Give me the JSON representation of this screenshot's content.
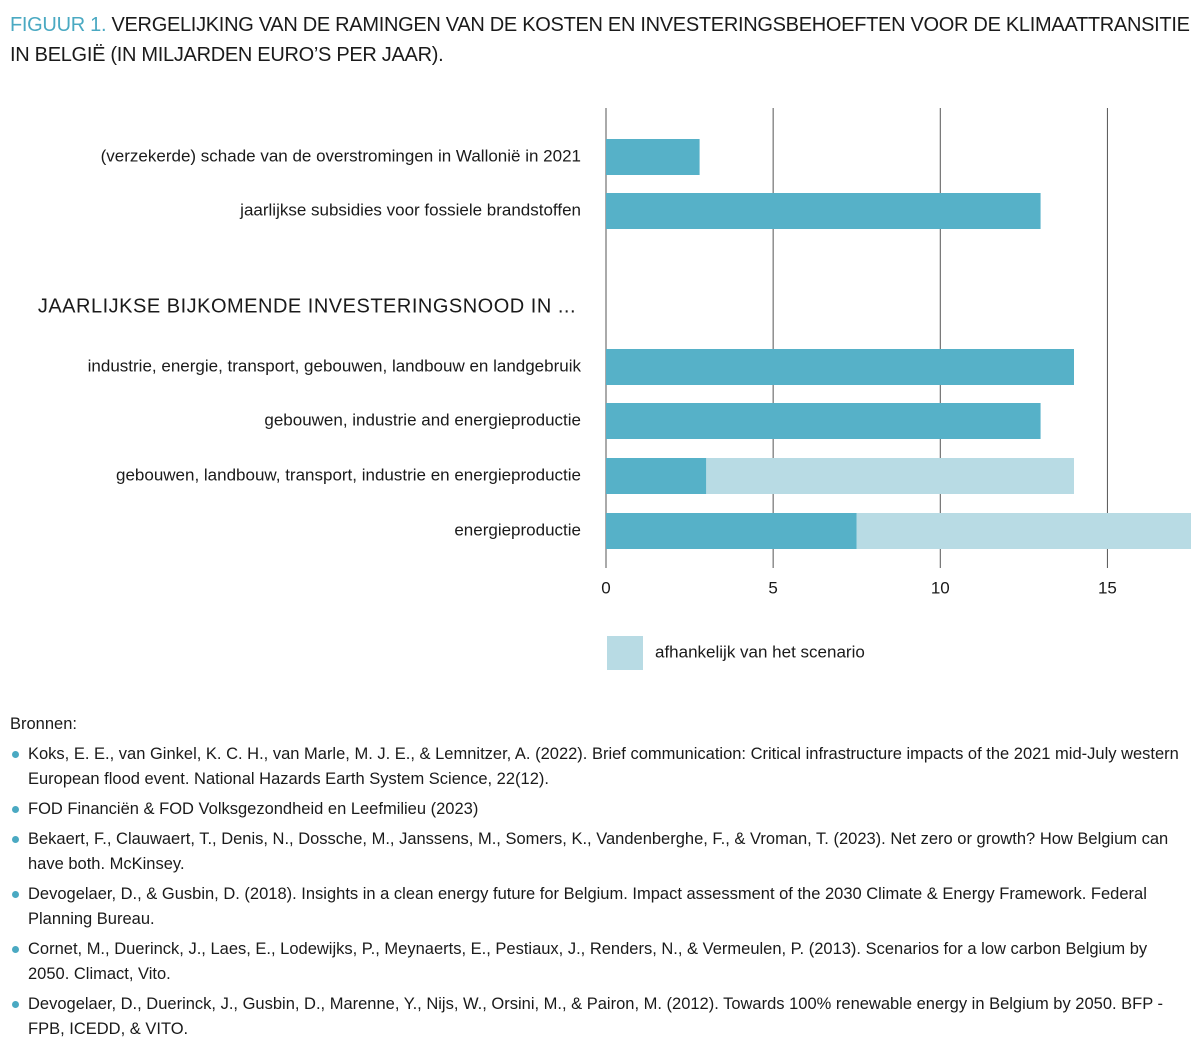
{
  "chart_data": {
    "type": "stacked-barh",
    "figure_label": "FIGUUR 1.",
    "title": "VERGELIJKING VAN DE RAMINGEN VAN DE KOSTEN EN INVESTERINGSBEHOEFTEN VOOR DE KLIMAATTRANSITIE IN BELGIË (IN MILJARDEN EURO’S PER JAAR).",
    "group_label": "JAARLIJKSE BIJKOMENDE INVESTERINGSNOOD IN ...",
    "categories": [
      "(verzekerde) schade van de overstromingen in Wallonië in 2021",
      "jaarlijkse subsidies voor fossiele brandstoffen",
      "industrie, energie, transport, gebouwen, landbouw en landgebruik",
      "gebouwen, industrie and energieproductie",
      "gebouwen, landbouw, transport, industrie en energieproductie",
      "energieproductie"
    ],
    "series": [
      {
        "color": "#56b1c8",
        "values": [
          2.8,
          13,
          14,
          13,
          3,
          7.5
        ]
      },
      {
        "name": "afhankelijk van het scenario",
        "color": "#b8dbe4",
        "values": [
          null,
          null,
          null,
          null,
          11,
          10
        ]
      }
    ],
    "xlim": [
      0,
      17.5
    ],
    "xticks": [
      0,
      5,
      10,
      15
    ],
    "grid": true
  },
  "sources": {
    "heading": "Bronnen:",
    "items": [
      "Koks, E. E., van Ginkel, K. C. H., van Marle, M. J. E., & Lemnitzer, A. (2022). Brief communication: Critical infrastructure impacts of the 2021 mid-July western European flood event. National Hazards Earth System Science, 22(12).",
      "FOD Financiën & FOD Volksgezondheid en Leefmilieu (2023)",
      "Bekaert, F., Clauwaert, T., Denis, N., Dossche, M., Janssens, M., Somers, K., Vandenberghe, F., & Vroman, T. (2023). Net zero or growth? How Belgium can have both. McKinsey.",
      "Devogelaer, D., & Gusbin, D. (2018). Insights in a clean energy future for Belgium. Impact assessment of the 2030 Climate & Energy Framework. Federal Planning Bureau.",
      "Cornet, M., Duerinck, J., Laes, E., Lodewijks, P., Meynaerts, E., Pestiaux, J., Renders, N., & Vermeulen, P. (2013). Scenarios for a low carbon Belgium by 2050. Climact, Vito.",
      "Devogelaer, D., Duerinck, J., Gusbin, D., Marenne, Y., Nijs, W., Orsini, M., & Pairon, M. (2012). Towards 100% renewable energy in Belgium by 2050. BFP - FPB, ICEDD, & VITO."
    ]
  }
}
